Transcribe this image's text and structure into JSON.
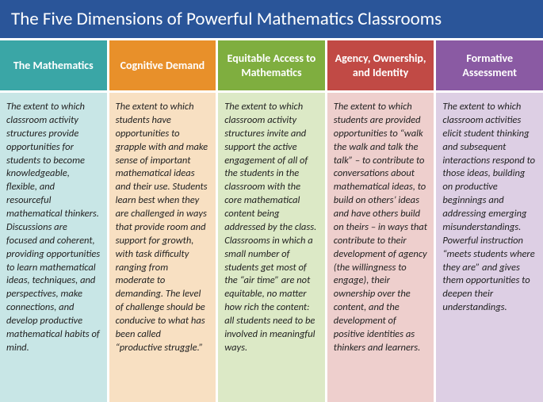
{
  "title": "The Five Dimensions of Powerful Mathematics Classrooms",
  "columns": [
    {
      "header": "The Mathematics",
      "body": "The extent to which classroom activity structures provide opportunities for students to become knowledgeable, flexible, and resourceful mathematical thinkers. Discussions are focused and coherent, providing opportunities to learn mathematical ideas, techniques, and perspectives, make connections, and develop productive mathematical habits of mind.",
      "head_color": "#3aa6a6",
      "body_color": "#c8e6e6"
    },
    {
      "header": "Cognitive Demand",
      "body": "The extent to which students have opportunities to grapple with and make sense of important mathematical ideas and their use. Students learn best when they are challenged in ways that provide room and support for growth, with task difficulty ranging from moderate to demanding. The level of challenge should be conducive to what has been called “productive struggle.”",
      "head_color": "#e8902a",
      "body_color": "#f8e0c2"
    },
    {
      "header": "Equitable Access to Mathematics",
      "body": "The extent to which classroom activity structures invite and support the active engagement of all of the students in the classroom with the core mathematical content being addressed by the class. Classrooms in which a small number of students get most of the “air time” are not equitable, no matter how rich the content: all students need to be involved in meaningful ways.",
      "head_color": "#7fae3f",
      "body_color": "#dce9c6"
    },
    {
      "header": "Agency, Ownership, and Identity",
      "body": "The extent to which students are provided opportunities to “walk the walk and talk the talk” – to contribute to conversations about mathematical ideas, to build on others’ ideas and have others build on theirs – in ways that contribute to their development of agency (the willingness to engage), their ownership over the content, and the development of positive identities as thinkers and learners.",
      "head_color": "#c14a45",
      "body_color": "#eecfcd"
    },
    {
      "header": "Formative Assessment",
      "body": "The extent to which classroom activities elicit student thinking and subsequent interactions respond to those ideas, building on productive beginnings and addressing emerging misunderstandings. Powerful instruction “meets students where they are” and gives them opportunities to deepen their understandings.",
      "head_color": "#8a5aa3",
      "body_color": "#ddcfe4"
    }
  ]
}
